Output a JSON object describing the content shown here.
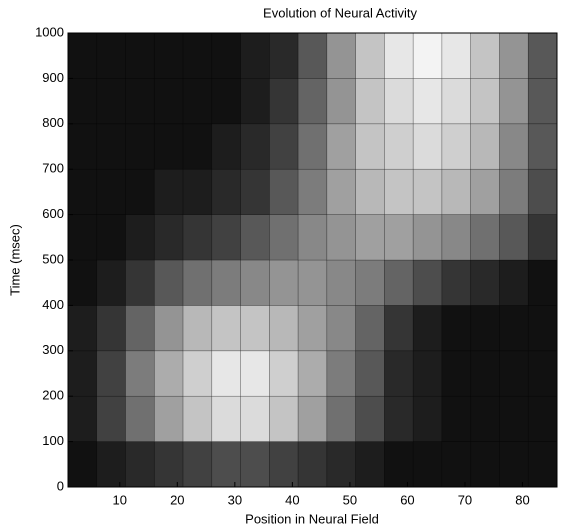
{
  "chart_data": {
    "type": "heatmap",
    "title": "Evolution of Neural Activity",
    "x_label": "Position in Neural Field",
    "y_label": "Time (msec)",
    "xlim": [
      1,
      86
    ],
    "ylim": [
      0,
      1000
    ],
    "xticks": [
      10,
      20,
      30,
      40,
      50,
      60,
      70,
      80
    ],
    "yticks": [
      0,
      100,
      200,
      300,
      400,
      500,
      600,
      700,
      800,
      900,
      1000
    ],
    "x_edges": [
      1,
      6,
      11,
      16,
      21,
      26,
      31,
      36,
      41,
      46,
      51,
      56,
      61,
      66,
      71,
      76,
      81,
      86
    ],
    "y_edges": [
      0,
      100,
      200,
      300,
      400,
      500,
      600,
      700,
      800,
      900,
      1000
    ],
    "z": [
      [
        0,
        0.05,
        0.1,
        0.15,
        0.2,
        0.25,
        0.25,
        0.2,
        0.15,
        0.1,
        0.05,
        0,
        0,
        0,
        0,
        0,
        0
      ],
      [
        0.05,
        0.2,
        0.4,
        0.6,
        0.75,
        0.85,
        0.85,
        0.75,
        0.6,
        0.4,
        0.25,
        0.1,
        0.05,
        0,
        0,
        0,
        0
      ],
      [
        0.05,
        0.2,
        0.45,
        0.65,
        0.8,
        0.9,
        0.9,
        0.8,
        0.65,
        0.45,
        0.3,
        0.1,
        0.05,
        0,
        0,
        0,
        0
      ],
      [
        0.05,
        0.15,
        0.35,
        0.55,
        0.7,
        0.75,
        0.75,
        0.7,
        0.6,
        0.5,
        0.35,
        0.15,
        0.05,
        0,
        0,
        0,
        0
      ],
      [
        0,
        0.05,
        0.15,
        0.3,
        0.4,
        0.45,
        0.5,
        0.55,
        0.55,
        0.5,
        0.45,
        0.35,
        0.25,
        0.15,
        0.1,
        0.05,
        0
      ],
      [
        0,
        0,
        0.05,
        0.1,
        0.15,
        0.2,
        0.3,
        0.4,
        0.5,
        0.55,
        0.6,
        0.6,
        0.55,
        0.5,
        0.4,
        0.3,
        0.15
      ],
      [
        0,
        0,
        0,
        0.05,
        0.05,
        0.1,
        0.15,
        0.3,
        0.45,
        0.6,
        0.7,
        0.75,
        0.75,
        0.7,
        0.6,
        0.45,
        0.25
      ],
      [
        0,
        0,
        0,
        0,
        0,
        0.05,
        0.1,
        0.2,
        0.4,
        0.6,
        0.75,
        0.8,
        0.85,
        0.8,
        0.7,
        0.5,
        0.3
      ],
      [
        0,
        0,
        0,
        0,
        0,
        0,
        0.05,
        0.15,
        0.35,
        0.55,
        0.75,
        0.85,
        0.9,
        0.85,
        0.75,
        0.55,
        0.3
      ],
      [
        0,
        0,
        0,
        0,
        0,
        0,
        0.05,
        0.1,
        0.3,
        0.55,
        0.75,
        0.9,
        0.95,
        0.9,
        0.75,
        0.55,
        0.3
      ]
    ]
  }
}
